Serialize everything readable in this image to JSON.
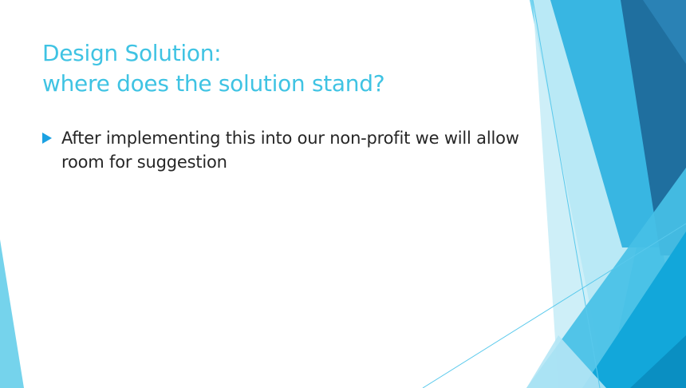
{
  "slide": {
    "title_lines": [
      "Design Solution:",
      "where does the solution stand?"
    ],
    "bullets": [
      {
        "text": "After implementing this into our non-profit we will allow room for suggestion",
        "marker_icon": "triangle-right-icon"
      }
    ]
  },
  "colors": {
    "title": "#3fc3e3",
    "body_text": "#262626",
    "bullet_marker": "#1ba1e2",
    "accent_light": "#72d5ef",
    "accent_mid": "#2da9dc",
    "accent_dark": "#1f6f9f",
    "accent_deep": "#0e94c8"
  }
}
